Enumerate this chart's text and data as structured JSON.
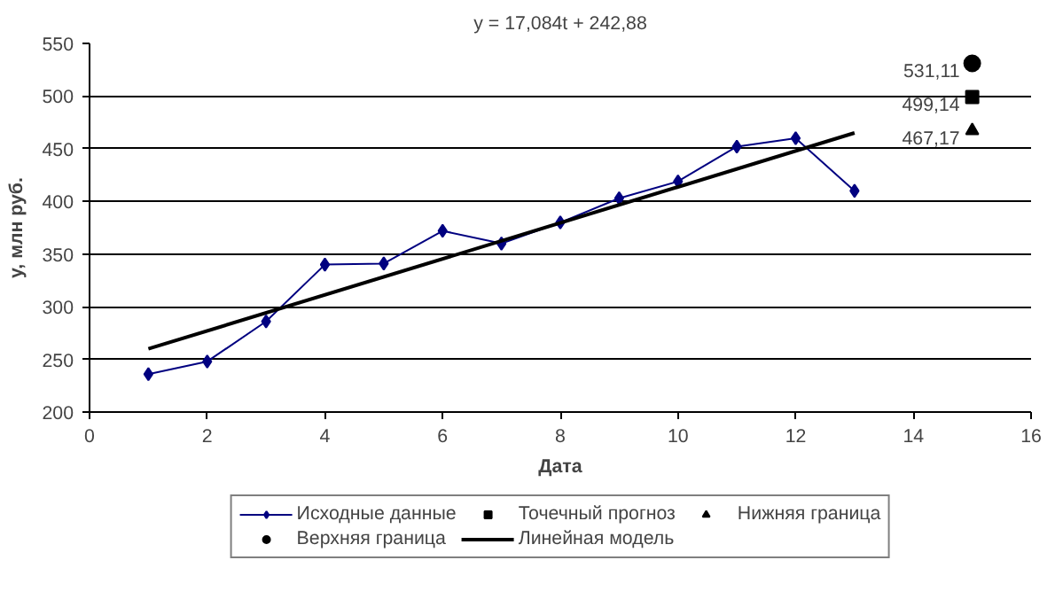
{
  "chart_data": {
    "type": "line",
    "xlabel": "Дата",
    "ylabel": "y, млн руб.",
    "annotations": [
      "y = 17,084t + 242,88"
    ],
    "xlim": [
      0,
      16
    ],
    "xticks": [
      0,
      2,
      4,
      6,
      8,
      10,
      12,
      14,
      16
    ],
    "ylim": [
      200,
      550
    ],
    "yticks": [
      200,
      250,
      300,
      350,
      400,
      450,
      500,
      550
    ],
    "grid": "y",
    "legend": "bottom",
    "series": [
      {
        "name": "Исходные данные",
        "color": "#000080",
        "marker": "diamond",
        "x": [
          1,
          2,
          3,
          4,
          5,
          6,
          7,
          8,
          9,
          10,
          11,
          12,
          13
        ],
        "values": [
          236,
          248,
          286,
          340,
          341,
          372,
          360,
          380,
          403,
          419,
          452,
          460,
          410
        ]
      },
      {
        "name": "Точечный прогноз",
        "type": "scatter",
        "color": "#000000",
        "marker": "square",
        "x": [
          15
        ],
        "values": [
          499.14
        ],
        "value_labels": [
          "499,14"
        ]
      },
      {
        "name": "Нижняя граница",
        "type": "scatter",
        "color": "#000000",
        "marker": "triangle",
        "x": [
          15
        ],
        "values": [
          467.17
        ],
        "value_labels": [
          "467,17"
        ]
      },
      {
        "name": "Верхняя граница",
        "type": "scatter",
        "color": "#000000",
        "marker": "circle",
        "x": [
          15
        ],
        "values": [
          531.11
        ],
        "value_labels": [
          "531,11"
        ]
      },
      {
        "name": "Линейная модель",
        "color": "#000000",
        "marker": "none",
        "x": [
          1,
          13
        ],
        "values": [
          260,
          465
        ]
      }
    ]
  }
}
